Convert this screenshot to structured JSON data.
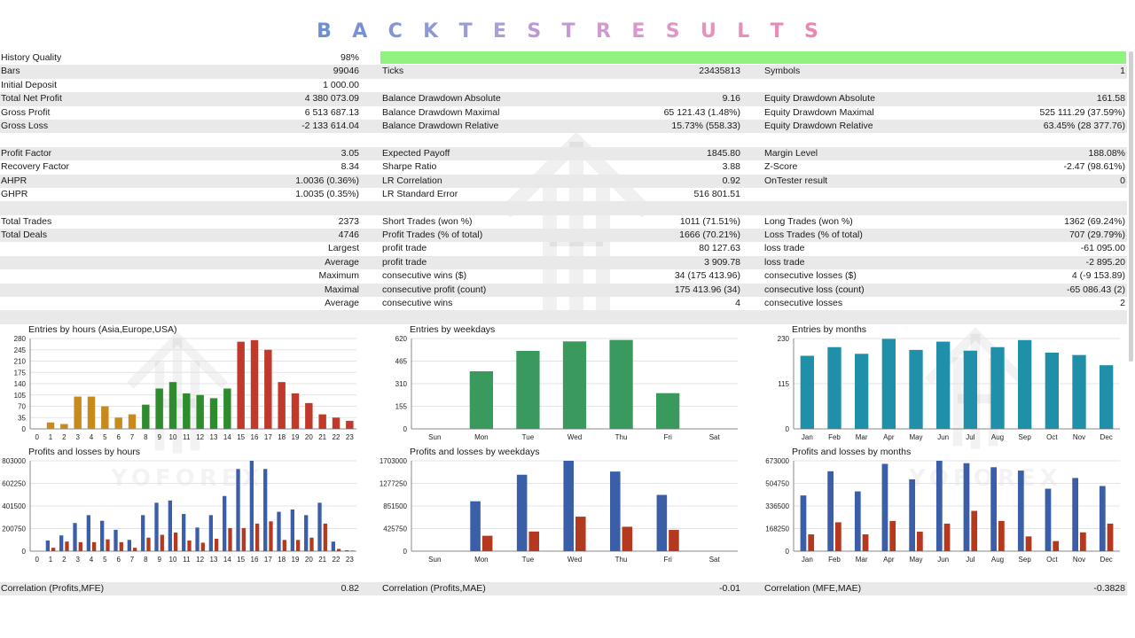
{
  "banner": {
    "letters": [
      "B",
      "A",
      "C",
      "K",
      "T",
      "E",
      "S",
      "T",
      "R",
      "E",
      "S",
      "U",
      "L",
      "T",
      "S"
    ],
    "colors": [
      "#6f8fd0",
      "#7a90d2",
      "#8594d4",
      "#9098d4",
      "#9c9bd4",
      "#ab9dd5",
      "#b89bd4",
      "#c59ad3",
      "#d19ad0",
      "#da98cb",
      "#e096c5",
      "#e592bf",
      "#e88ebb",
      "#ea8ab6",
      "#eb86b2"
    ]
  },
  "quality": {
    "label": "History Quality",
    "value": "98%",
    "bar_color": "#90f27f",
    "fraction": 0.98
  },
  "rows": [
    {
      "l1": "Bars",
      "r1": "99046",
      "l2": "Ticks",
      "r2": "23435813",
      "l3": "Symbols",
      "r3": "1"
    },
    {
      "l1": "Initial Deposit",
      "r1": "1 000.00"
    },
    {
      "l1": "Total Net Profit",
      "r1": "4 380 073.09",
      "l2": "Balance Drawdown Absolute",
      "r2": "9.16",
      "l3": "Equity Drawdown Absolute",
      "r3": "161.58"
    },
    {
      "l1": "Gross Profit",
      "r1": "6 513 687.13",
      "l2": "Balance Drawdown Maximal",
      "r2": "65 121.43 (1.48%)",
      "l3": "Equity Drawdown Maximal",
      "r3": "525 111.29 (37.59%)"
    },
    {
      "l1": "Gross Loss",
      "r1": "-2 133 614.04",
      "l2": "Balance Drawdown Relative",
      "r2": "15.73% (558.33)",
      "l3": "Equity Drawdown Relative",
      "r3": "63.45% (28 377.76)"
    },
    {},
    {
      "l1": "Profit Factor",
      "r1": "3.05",
      "l2": "Expected Payoff",
      "r2": "1845.80",
      "l3": "Margin Level",
      "r3": "188.08%"
    },
    {
      "l1": "Recovery Factor",
      "r1": "8.34",
      "l2": "Sharpe Ratio",
      "r2": "3.88",
      "l3": "Z-Score",
      "r3": "-2.47 (98.61%)"
    },
    {
      "l1": "AHPR",
      "r1": "1.0036 (0.36%)",
      "l2": "LR Correlation",
      "r2": "0.92",
      "l3": "OnTester result",
      "r3": "0"
    },
    {
      "l1": "GHPR",
      "r1": "1.0035 (0.35%)",
      "l2": "LR Standard Error",
      "r2": "516 801.51"
    },
    {},
    {
      "l1": "Total Trades",
      "r1": "2373",
      "l2": "Short Trades (won %)",
      "r2": "1011 (71.51%)",
      "l3": "Long Trades (won %)",
      "r3": "1362 (69.24%)"
    },
    {
      "l1": "Total Deals",
      "r1": "4746",
      "l2": "Profit Trades (% of total)",
      "r2": "1666 (70.21%)",
      "l3": "Loss Trades (% of total)",
      "r3": "707 (29.79%)"
    },
    {
      "r1": "Largest",
      "l2": "profit trade",
      "r2": "80 127.63",
      "l3": "loss trade",
      "r3": "-61 095.00"
    },
    {
      "r1": "Average",
      "l2": "profit trade",
      "r2": "3 909.78",
      "l3": "loss trade",
      "r3": "-2 895.20"
    },
    {
      "r1": "Maximum",
      "l2": "consecutive wins ($)",
      "r2": "34 (175 413.96)",
      "l3": "consecutive losses ($)",
      "r3": "4 (-9 153.89)"
    },
    {
      "r1": "Maximal",
      "l2": "consecutive profit (count)",
      "r2": "175 413.96 (34)",
      "l3": "consecutive loss (count)",
      "r3": "-65 086.43 (2)"
    },
    {
      "r1": "Average",
      "l2": "consecutive wins",
      "r2": "4",
      "l3": "consecutive losses",
      "r3": "2"
    },
    {}
  ],
  "watermark": {
    "text": "YOFOREX"
  },
  "chart_data": [
    {
      "id": "hours-entries",
      "type": "bar",
      "title": "Entries by hours (Asia,Europe,USA)",
      "categories": [
        "0",
        "1",
        "2",
        "3",
        "4",
        "5",
        "6",
        "7",
        "8",
        "9",
        "10",
        "11",
        "12",
        "13",
        "14",
        "15",
        "16",
        "17",
        "18",
        "19",
        "20",
        "21",
        "22",
        "23"
      ],
      "values": [
        0,
        20,
        15,
        100,
        100,
        70,
        35,
        45,
        75,
        125,
        145,
        110,
        105,
        95,
        125,
        270,
        275,
        245,
        145,
        110,
        80,
        45,
        35,
        25
      ],
      "bar_colors": [
        "#c98a1c",
        "#c98a1c",
        "#c98a1c",
        "#c98a1c",
        "#c98a1c",
        "#c98a1c",
        "#c98a1c",
        "#c98a1c",
        "#2e8b2e",
        "#2e8b2e",
        "#2e8b2e",
        "#2e8b2e",
        "#2e8b2e",
        "#2e8b2e",
        "#2e8b2e",
        "#c0392b",
        "#c0392b",
        "#c0392b",
        "#c0392b",
        "#c0392b",
        "#c0392b",
        "#c0392b",
        "#c0392b",
        "#c0392b"
      ],
      "ylim": [
        0,
        280
      ],
      "yticks": [
        "0",
        "35",
        "70",
        "105",
        "140",
        "175",
        "210",
        "245",
        "280"
      ]
    },
    {
      "id": "weekday-entries",
      "type": "bar",
      "title": "Entries by weekdays",
      "categories": [
        "Sun",
        "Mon",
        "Tue",
        "Wed",
        "Thu",
        "Fri",
        "Sat"
      ],
      "values": [
        0,
        395,
        535,
        600,
        610,
        245,
        0
      ],
      "bar_colors": [
        "#3a9a5e",
        "#3a9a5e",
        "#3a9a5e",
        "#3a9a5e",
        "#3a9a5e",
        "#3a9a5e",
        "#3a9a5e"
      ],
      "ylim": [
        0,
        620
      ],
      "yticks": [
        "0",
        "155",
        "310",
        "465",
        "620"
      ]
    },
    {
      "id": "month-entries",
      "type": "bar",
      "title": "Entries by months",
      "categories": [
        "Jan",
        "Feb",
        "Mar",
        "Apr",
        "May",
        "Jun",
        "Jul",
        "Aug",
        "Sep",
        "Oct",
        "Nov",
        "Dec"
      ],
      "values": [
        186,
        208,
        191,
        229,
        201,
        222,
        199,
        208,
        226,
        194,
        188,
        162
      ],
      "bar_colors": [
        "#1f8faa",
        "#1f8faa",
        "#1f8faa",
        "#1f8faa",
        "#1f8faa",
        "#1f8faa",
        "#1f8faa",
        "#1f8faa",
        "#1f8faa",
        "#1f8faa",
        "#1f8faa",
        "#1f8faa"
      ],
      "ylim": [
        0,
        230
      ],
      "yticks": [
        "0",
        "115",
        "230"
      ]
    },
    {
      "id": "hours-pl",
      "type": "bar",
      "title": "Profits and losses by hours",
      "categories": [
        "0",
        "1",
        "2",
        "3",
        "4",
        "5",
        "6",
        "7",
        "8",
        "9",
        "10",
        "11",
        "12",
        "13",
        "14",
        "15",
        "16",
        "17",
        "18",
        "19",
        "20",
        "21",
        "22",
        "23"
      ],
      "series": [
        {
          "color": "#3a5fa8",
          "values": [
            0,
            95000,
            140000,
            250000,
            320000,
            270000,
            190000,
            100000,
            320000,
            430000,
            450000,
            330000,
            210000,
            320000,
            490000,
            730000,
            803000,
            730000,
            350000,
            370000,
            320000,
            430000,
            85000,
            8000
          ]
        },
        {
          "color": "#b5391f",
          "values": [
            0,
            30000,
            85000,
            80000,
            80000,
            105000,
            80000,
            30000,
            120000,
            145000,
            165000,
            95000,
            75000,
            110000,
            205000,
            205000,
            245000,
            265000,
            100000,
            100000,
            120000,
            245000,
            20000,
            5000
          ]
        }
      ],
      "ylim": [
        0,
        803000
      ],
      "yticks": [
        "0",
        "200750",
        "401500",
        "602250",
        "803000"
      ]
    },
    {
      "id": "weekday-pl",
      "type": "bar",
      "title": "Profits and losses by weekdays",
      "categories": [
        "Sun",
        "Mon",
        "Tue",
        "Wed",
        "Thu",
        "Fri",
        "Sat"
      ],
      "series": [
        {
          "color": "#3a5fa8",
          "values": [
            0,
            940000,
            1440000,
            1703000,
            1500000,
            1060000,
            0
          ]
        },
        {
          "color": "#b5391f",
          "values": [
            0,
            290000,
            370000,
            650000,
            460000,
            400000,
            0
          ]
        }
      ],
      "ylim": [
        0,
        1703000
      ],
      "yticks": [
        "0",
        "425750",
        "851500",
        "1277250",
        "1703000"
      ]
    },
    {
      "id": "month-pl",
      "type": "bar",
      "title": "Profits and losses by months",
      "categories": [
        "Jan",
        "Feb",
        "Mar",
        "Apr",
        "May",
        "Jun",
        "Jul",
        "Aug",
        "Sep",
        "Oct",
        "Nov",
        "Dec"
      ],
      "series": [
        {
          "color": "#3a5fa8",
          "values": [
            415000,
            595000,
            445000,
            650000,
            535000,
            673000,
            655000,
            625000,
            600000,
            465000,
            545000,
            485000
          ]
        },
        {
          "color": "#b5391f",
          "values": [
            125000,
            215000,
            125000,
            225000,
            145000,
            205000,
            300000,
            225000,
            110000,
            75000,
            140000,
            205000
          ]
        }
      ],
      "ylim": [
        0,
        673000
      ],
      "yticks": [
        "0",
        "168250",
        "336500",
        "504750",
        "673000"
      ]
    }
  ],
  "correlation": {
    "l1": "Correlation (Profits,MFE)",
    "r1": "0.82",
    "l2": "Correlation (Profits,MAE)",
    "r2": "-0.01",
    "l3": "Correlation (MFE,MAE)",
    "r3": "-0.3828"
  }
}
